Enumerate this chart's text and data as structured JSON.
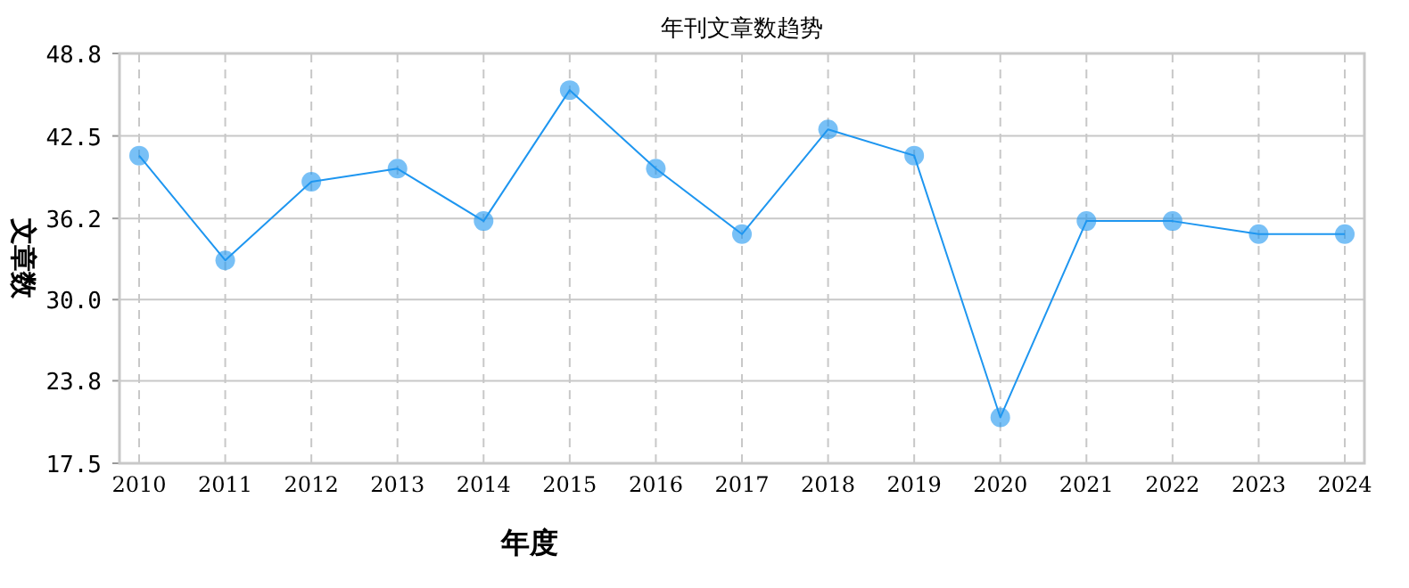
{
  "chart_data": {
    "type": "line",
    "title": "年刊文章数趋势",
    "xlabel": "年度",
    "ylabel": "文章数",
    "categories": [
      "2010",
      "2011",
      "2012",
      "2013",
      "2014",
      "2015",
      "2016",
      "2017",
      "2018",
      "2019",
      "2020",
      "2021",
      "2022",
      "2023",
      "2024"
    ],
    "series": [
      {
        "color": "#1e96f0",
        "values": [
          41,
          33,
          39,
          40,
          36,
          46,
          40,
          35,
          43,
          41,
          21,
          36,
          36,
          35,
          35
        ]
      }
    ],
    "ylim": [
      17.5,
      48.8
    ],
    "yticks": [
      17.5,
      23.8,
      {
        "value": 30,
        "label": "30.0"
      },
      36.2,
      42.5,
      48.8
    ],
    "grid": true,
    "marker": "circle",
    "line_style": "solid"
  }
}
